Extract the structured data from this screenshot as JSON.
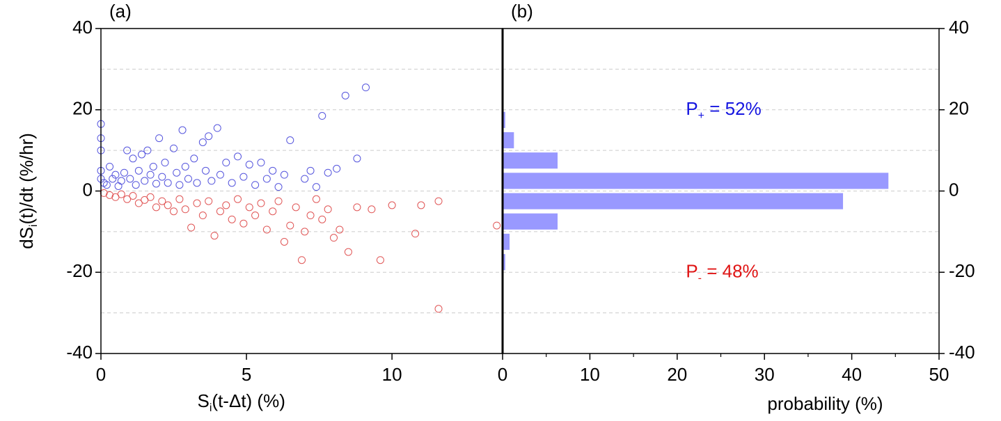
{
  "chart_data": [
    {
      "type": "scatter",
      "panel_label": "(a)",
      "xlabel": [
        "S",
        "i",
        "(t-Δt) (%)"
      ],
      "ylabel": [
        "dS",
        "i",
        "(t)/dt (%/hr)"
      ],
      "xlim": [
        0,
        13.8
      ],
      "xticks": [
        0,
        5,
        10
      ],
      "ylim": [
        -40,
        40
      ],
      "yticks": [
        -40,
        -20,
        0,
        20,
        40
      ],
      "ygrid": [
        -30,
        -20,
        -10,
        0,
        10,
        20,
        30
      ],
      "series": [
        {
          "color": "#5555dd",
          "x": [
            0,
            0,
            0,
            0,
            0,
            0.1,
            0.2,
            0.3,
            0.4,
            0.5,
            0.6,
            0.7,
            0.8,
            0.9,
            1.0,
            1.1,
            1.2,
            1.3,
            1.4,
            1.5,
            1.6,
            1.7,
            1.8,
            1.9,
            2.0,
            2.1,
            2.2,
            2.3,
            2.5,
            2.6,
            2.7,
            2.8,
            2.9,
            3.0,
            3.2,
            3.3,
            3.5,
            3.6,
            3.7,
            3.8,
            4.0,
            4.1,
            4.3,
            4.5,
            4.7,
            4.9,
            5.1,
            5.3,
            5.5,
            5.7,
            5.9,
            6.1,
            6.3,
            6.5,
            7.0,
            7.2,
            7.4,
            7.6,
            7.8,
            8.1,
            8.4,
            8.8,
            9.1
          ],
          "values": [
            16.5,
            13,
            10,
            5,
            3,
            2,
            1.5,
            6,
            3,
            4,
            1.2,
            2.5,
            4.5,
            10,
            3,
            8,
            1.5,
            5,
            9,
            2.5,
            10,
            4,
            6,
            1.8,
            13,
            3.5,
            7,
            2,
            10.5,
            4.5,
            1.5,
            15,
            6,
            3,
            8,
            2,
            12,
            5,
            13.5,
            2.5,
            15.5,
            4,
            7,
            2,
            8.5,
            3.5,
            6.5,
            1.5,
            7,
            3,
            5,
            1,
            4,
            12.5,
            3,
            5,
            1,
            18.5,
            4.5,
            5.5,
            23.5,
            8,
            25.5
          ]
        },
        {
          "color": "#e05555",
          "x": [
            0.1,
            0.3,
            0.5,
            0.7,
            0.9,
            1.1,
            1.3,
            1.5,
            1.7,
            1.9,
            2.1,
            2.3,
            2.5,
            2.7,
            2.9,
            3.1,
            3.3,
            3.5,
            3.7,
            3.9,
            4.1,
            4.3,
            4.5,
            4.7,
            4.9,
            5.1,
            5.3,
            5.5,
            5.7,
            5.9,
            6.1,
            6.3,
            6.5,
            6.7,
            6.9,
            7.0,
            7.2,
            7.4,
            7.6,
            7.8,
            8.0,
            8.2,
            8.5,
            8.8,
            9.3,
            9.6,
            10.0,
            10.8,
            11.0,
            11.6,
            11.6,
            13.6
          ],
          "values": [
            -0.5,
            -1,
            -1.5,
            -0.8,
            -2,
            -1.2,
            -3,
            -2.2,
            -1.5,
            -4,
            -2.5,
            -3.5,
            -5,
            -2,
            -4.5,
            -9,
            -3,
            -6,
            -2.5,
            -11,
            -5,
            -3.5,
            -7,
            -2,
            -8,
            -4,
            -6,
            -3,
            -9.5,
            -5,
            -2.5,
            -12.5,
            -8.5,
            -4,
            -17,
            -10,
            -6,
            -2,
            -7,
            -4.5,
            -11.5,
            -9.5,
            -15,
            -4,
            -4.5,
            -17,
            -3.5,
            -10.5,
            -3.5,
            -2.5,
            -29,
            -8.5
          ]
        }
      ]
    },
    {
      "type": "histogram",
      "panel_label": "(b)",
      "orientation": "horizontal",
      "xlabel": "probability (%)",
      "xlim": [
        0,
        50
      ],
      "xticks": [
        0,
        10,
        20,
        30,
        40,
        50
      ],
      "xminor": [
        5,
        15,
        25,
        35,
        45
      ],
      "ylim": [
        -40,
        40
      ],
      "yticks": [
        -40,
        -20,
        0,
        20,
        40
      ],
      "ygrid": [
        -30,
        -20,
        -10,
        0,
        10,
        20,
        30
      ],
      "bins": [
        -20,
        -15,
        -10,
        -5,
        0,
        5,
        10,
        15,
        20
      ],
      "values": [
        0.3,
        0.8,
        6.3,
        39,
        44.2,
        6.3,
        1.3,
        0.3
      ],
      "color": "#9999ff",
      "annotations": [
        {
          "parts": [
            "P",
            "+",
            " = 52%"
          ],
          "color": "#1515e0",
          "x": 21,
          "y": 20
        },
        {
          "parts": [
            "P",
            "-",
            " = 48%"
          ],
          "color": "#e01515",
          "x": 21,
          "y": -20
        }
      ]
    }
  ]
}
